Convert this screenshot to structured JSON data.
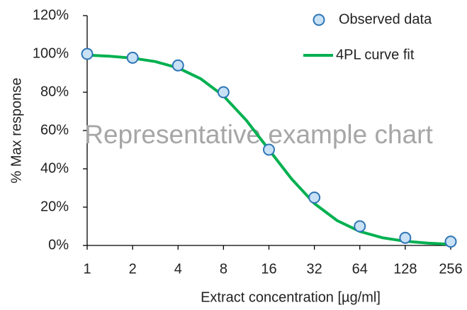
{
  "chart_data": {
    "type": "scatter",
    "title_annotation": "Representative example chart",
    "xlabel": "Extract concentration [µg/ml]",
    "ylabel": "% Max response",
    "xscale": "log",
    "log_base": 2,
    "xlim": [
      1,
      256
    ],
    "xticks": [
      1,
      2,
      4,
      8,
      16,
      32,
      64,
      128,
      256
    ],
    "ylim": [
      0,
      120
    ],
    "yticks": [
      {
        "value": 0,
        "label": "0%"
      },
      {
        "value": 20,
        "label": "20%"
      },
      {
        "value": 40,
        "label": "40%"
      },
      {
        "value": 60,
        "label": "60%"
      },
      {
        "value": 80,
        "label": "80%"
      },
      {
        "value": 100,
        "label": "100%"
      },
      {
        "value": 120,
        "label": "120%"
      }
    ],
    "grid": false,
    "legend": "upper right",
    "series": [
      {
        "name": "Observed data",
        "type": "scatter",
        "color": "#2e75b6",
        "fill": "#c9e1f5",
        "x": [
          1,
          2,
          4,
          8,
          16,
          32,
          64,
          128,
          256
        ],
        "values": [
          100,
          98,
          94,
          80,
          50,
          25,
          10,
          4,
          2
        ]
      },
      {
        "name": "4PL curve fit",
        "type": "line",
        "color": "#00b050",
        "x": [
          1,
          1.41,
          2,
          2.83,
          4,
          5.66,
          8,
          11.31,
          16,
          22.63,
          32,
          45.25,
          64,
          90.51,
          128,
          181.02,
          256
        ],
        "values": [
          99.4,
          98.8,
          97.8,
          96.0,
          92.7,
          87.0,
          78.1,
          65.4,
          50,
          34.7,
          21.9,
          13.0,
          7.3,
          4.0,
          2.2,
          1.2,
          0.6
        ]
      }
    ]
  }
}
